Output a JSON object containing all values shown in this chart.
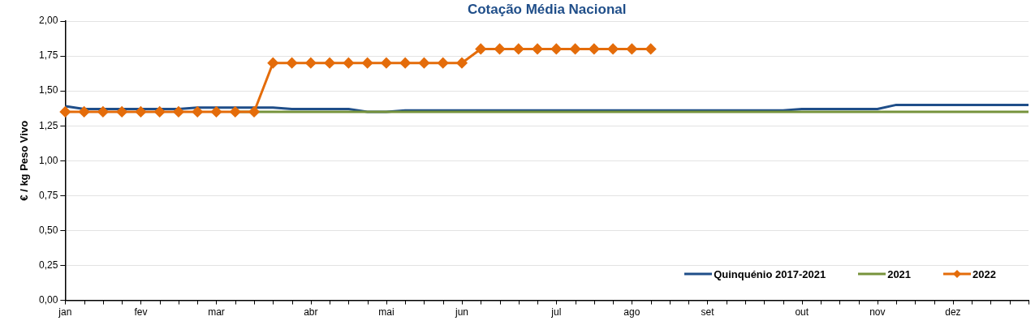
{
  "chart_data": {
    "type": "line",
    "title": "Cotação Média Nacional",
    "ylabel": "€ / kg Peso Vivo",
    "categories": [
      "jan",
      null,
      null,
      null,
      "fev",
      null,
      null,
      null,
      "mar",
      null,
      null,
      null,
      null,
      "abr",
      null,
      null,
      null,
      "mai",
      null,
      null,
      null,
      "jun",
      null,
      null,
      null,
      null,
      "jul",
      null,
      null,
      null,
      "ago",
      null,
      null,
      null,
      "set",
      null,
      null,
      null,
      null,
      "out",
      null,
      null,
      null,
      "nov",
      null,
      null,
      null,
      "dez",
      null,
      null,
      null,
      null
    ],
    "series": [
      {
        "name": "Quinquénio 2017-2021",
        "color": "#1f4e89",
        "marker": "none",
        "values": [
          1.39,
          1.37,
          1.37,
          1.37,
          1.37,
          1.37,
          1.37,
          1.38,
          1.38,
          1.38,
          1.38,
          1.38,
          1.37,
          1.37,
          1.37,
          1.37,
          1.35,
          1.35,
          1.36,
          1.36,
          1.36,
          1.36,
          1.36,
          1.36,
          1.36,
          1.36,
          1.36,
          1.36,
          1.36,
          1.36,
          1.36,
          1.36,
          1.36,
          1.36,
          1.36,
          1.36,
          1.36,
          1.36,
          1.36,
          1.37,
          1.37,
          1.37,
          1.37,
          1.37,
          1.4,
          1.4,
          1.4,
          1.4,
          1.4,
          1.4,
          1.4,
          1.4
        ]
      },
      {
        "name": "2021",
        "color": "#77933c",
        "marker": "none",
        "values": [
          null,
          null,
          null,
          null,
          null,
          null,
          null,
          null,
          null,
          1.35,
          1.35,
          1.35,
          1.35,
          1.35,
          1.35,
          1.35,
          1.35,
          1.35,
          1.35,
          1.35,
          1.35,
          1.35,
          1.35,
          1.35,
          1.35,
          1.35,
          1.35,
          1.35,
          1.35,
          1.35,
          1.35,
          1.35,
          1.35,
          1.35,
          1.35,
          1.35,
          1.35,
          1.35,
          1.35,
          1.35,
          1.35,
          1.35,
          1.35,
          1.35,
          1.35,
          1.35,
          1.35,
          1.35,
          1.35,
          1.35,
          1.35,
          1.35
        ]
      },
      {
        "name": "2022",
        "color": "#e46c0a",
        "marker": "diamond",
        "values": [
          1.35,
          1.35,
          1.35,
          1.35,
          1.35,
          1.35,
          1.35,
          1.35,
          1.35,
          1.35,
          1.35,
          1.7,
          1.7,
          1.7,
          1.7,
          1.7,
          1.7,
          1.7,
          1.7,
          1.7,
          1.7,
          1.7,
          1.8,
          1.8,
          1.8,
          1.8,
          1.8,
          1.8,
          1.8,
          1.8,
          1.8,
          1.8,
          null,
          null,
          null,
          null,
          null,
          null,
          null,
          null,
          null,
          null,
          null,
          null,
          null,
          null,
          null,
          null,
          null,
          null,
          null,
          null
        ]
      }
    ],
    "ylim": [
      0,
      2
    ],
    "yticks": [
      {
        "value": 0,
        "label": "0,00"
      },
      {
        "value": 0.25,
        "label": "0,25"
      },
      {
        "value": 0.5,
        "label": "0,50"
      },
      {
        "value": 0.75,
        "label": "0,75"
      },
      {
        "value": 1,
        "label": "1,00"
      },
      {
        "value": 1.25,
        "label": "1,25"
      },
      {
        "value": 1.5,
        "label": "1,50"
      },
      {
        "value": 1.75,
        "label": "1,75"
      },
      {
        "value": 2,
        "label": "2,00"
      }
    ],
    "grid": "y",
    "legend": "bottom right"
  }
}
